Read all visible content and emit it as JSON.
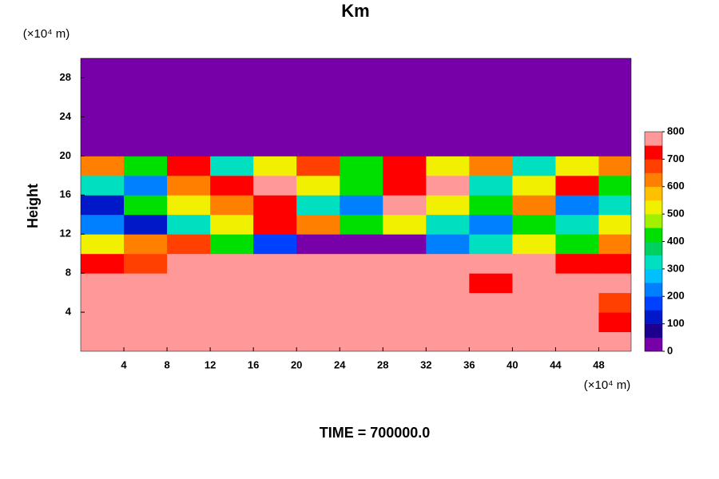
{
  "chart_data": {
    "type": "contour",
    "title": "Km",
    "y_label": "Height",
    "x_unit": "(×10⁴ m)",
    "y_unit": "(×10⁴ m)",
    "footer": "TIME = 700000.0",
    "xlim": [
      0,
      51
    ],
    "ylim": [
      0,
      30
    ],
    "xticks": [
      4,
      8,
      12,
      16,
      20,
      24,
      28,
      32,
      36,
      40,
      44,
      48
    ],
    "yticks": [
      4,
      8,
      12,
      16,
      20,
      24,
      28
    ],
    "x": [
      2,
      6,
      10,
      14,
      18,
      22,
      26,
      30,
      34,
      38,
      42,
      46,
      50
    ],
    "y": [
      1,
      3,
      5,
      7,
      9,
      11,
      13,
      15,
      17,
      19,
      21,
      23,
      25,
      27,
      29
    ],
    "z": [
      [
        800,
        800,
        800,
        800,
        800,
        800,
        800,
        800,
        800,
        800,
        800,
        800,
        800
      ],
      [
        750,
        800,
        800,
        800,
        800,
        800,
        800,
        800,
        800,
        800,
        800,
        800,
        700
      ],
      [
        800,
        800,
        800,
        800,
        800,
        800,
        800,
        800,
        800,
        800,
        800,
        800,
        650
      ],
      [
        750,
        800,
        800,
        800,
        800,
        800,
        800,
        800,
        800,
        700,
        800,
        800,
        800
      ],
      [
        700,
        650,
        750,
        800,
        800,
        800,
        750,
        800,
        800,
        800,
        750,
        700,
        700
      ],
      [
        500,
        600,
        650,
        400,
        150,
        20,
        20,
        20,
        200,
        300,
        500,
        400,
        600
      ],
      [
        200,
        100,
        300,
        500,
        700,
        600,
        400,
        500,
        300,
        200,
        400,
        300,
        500
      ],
      [
        100,
        400,
        500,
        600,
        700,
        300,
        200,
        750,
        500,
        400,
        600,
        200,
        300
      ],
      [
        300,
        200,
        600,
        700,
        780,
        500,
        400,
        700,
        780,
        300,
        500,
        700,
        400
      ],
      [
        600,
        400,
        700,
        300,
        500,
        650,
        400,
        700,
        500,
        600,
        300,
        500,
        600
      ],
      [
        0,
        0,
        0,
        0,
        0,
        0,
        0,
        0,
        0,
        0,
        0,
        0,
        0
      ],
      [
        0,
        0,
        0,
        0,
        0,
        0,
        0,
        0,
        0,
        0,
        0,
        0,
        0
      ],
      [
        0,
        0,
        0,
        0,
        0,
        0,
        0,
        0,
        0,
        0,
        0,
        0,
        0
      ],
      [
        0,
        0,
        0,
        0,
        0,
        0,
        0,
        0,
        0,
        0,
        0,
        0,
        0
      ],
      [
        0,
        0,
        0,
        0,
        0,
        0,
        0,
        0,
        0,
        0,
        0,
        0,
        0
      ]
    ],
    "levels": [
      0,
      50,
      100,
      150,
      200,
      250,
      300,
      350,
      400,
      450,
      500,
      550,
      600,
      650,
      700,
      750,
      800
    ],
    "colors": [
      "#7800a8",
      "#1e0090",
      "#0018c8",
      "#0040ff",
      "#0080ff",
      "#00c0ff",
      "#00e0c0",
      "#00d060",
      "#00e000",
      "#a0f000",
      "#f0f000",
      "#ffc000",
      "#ff8000",
      "#ff4000",
      "#ff0000",
      "#ff9898"
    ],
    "colorbar_ticks": [
      0,
      100,
      200,
      300,
      400,
      500,
      600,
      700,
      800
    ]
  }
}
